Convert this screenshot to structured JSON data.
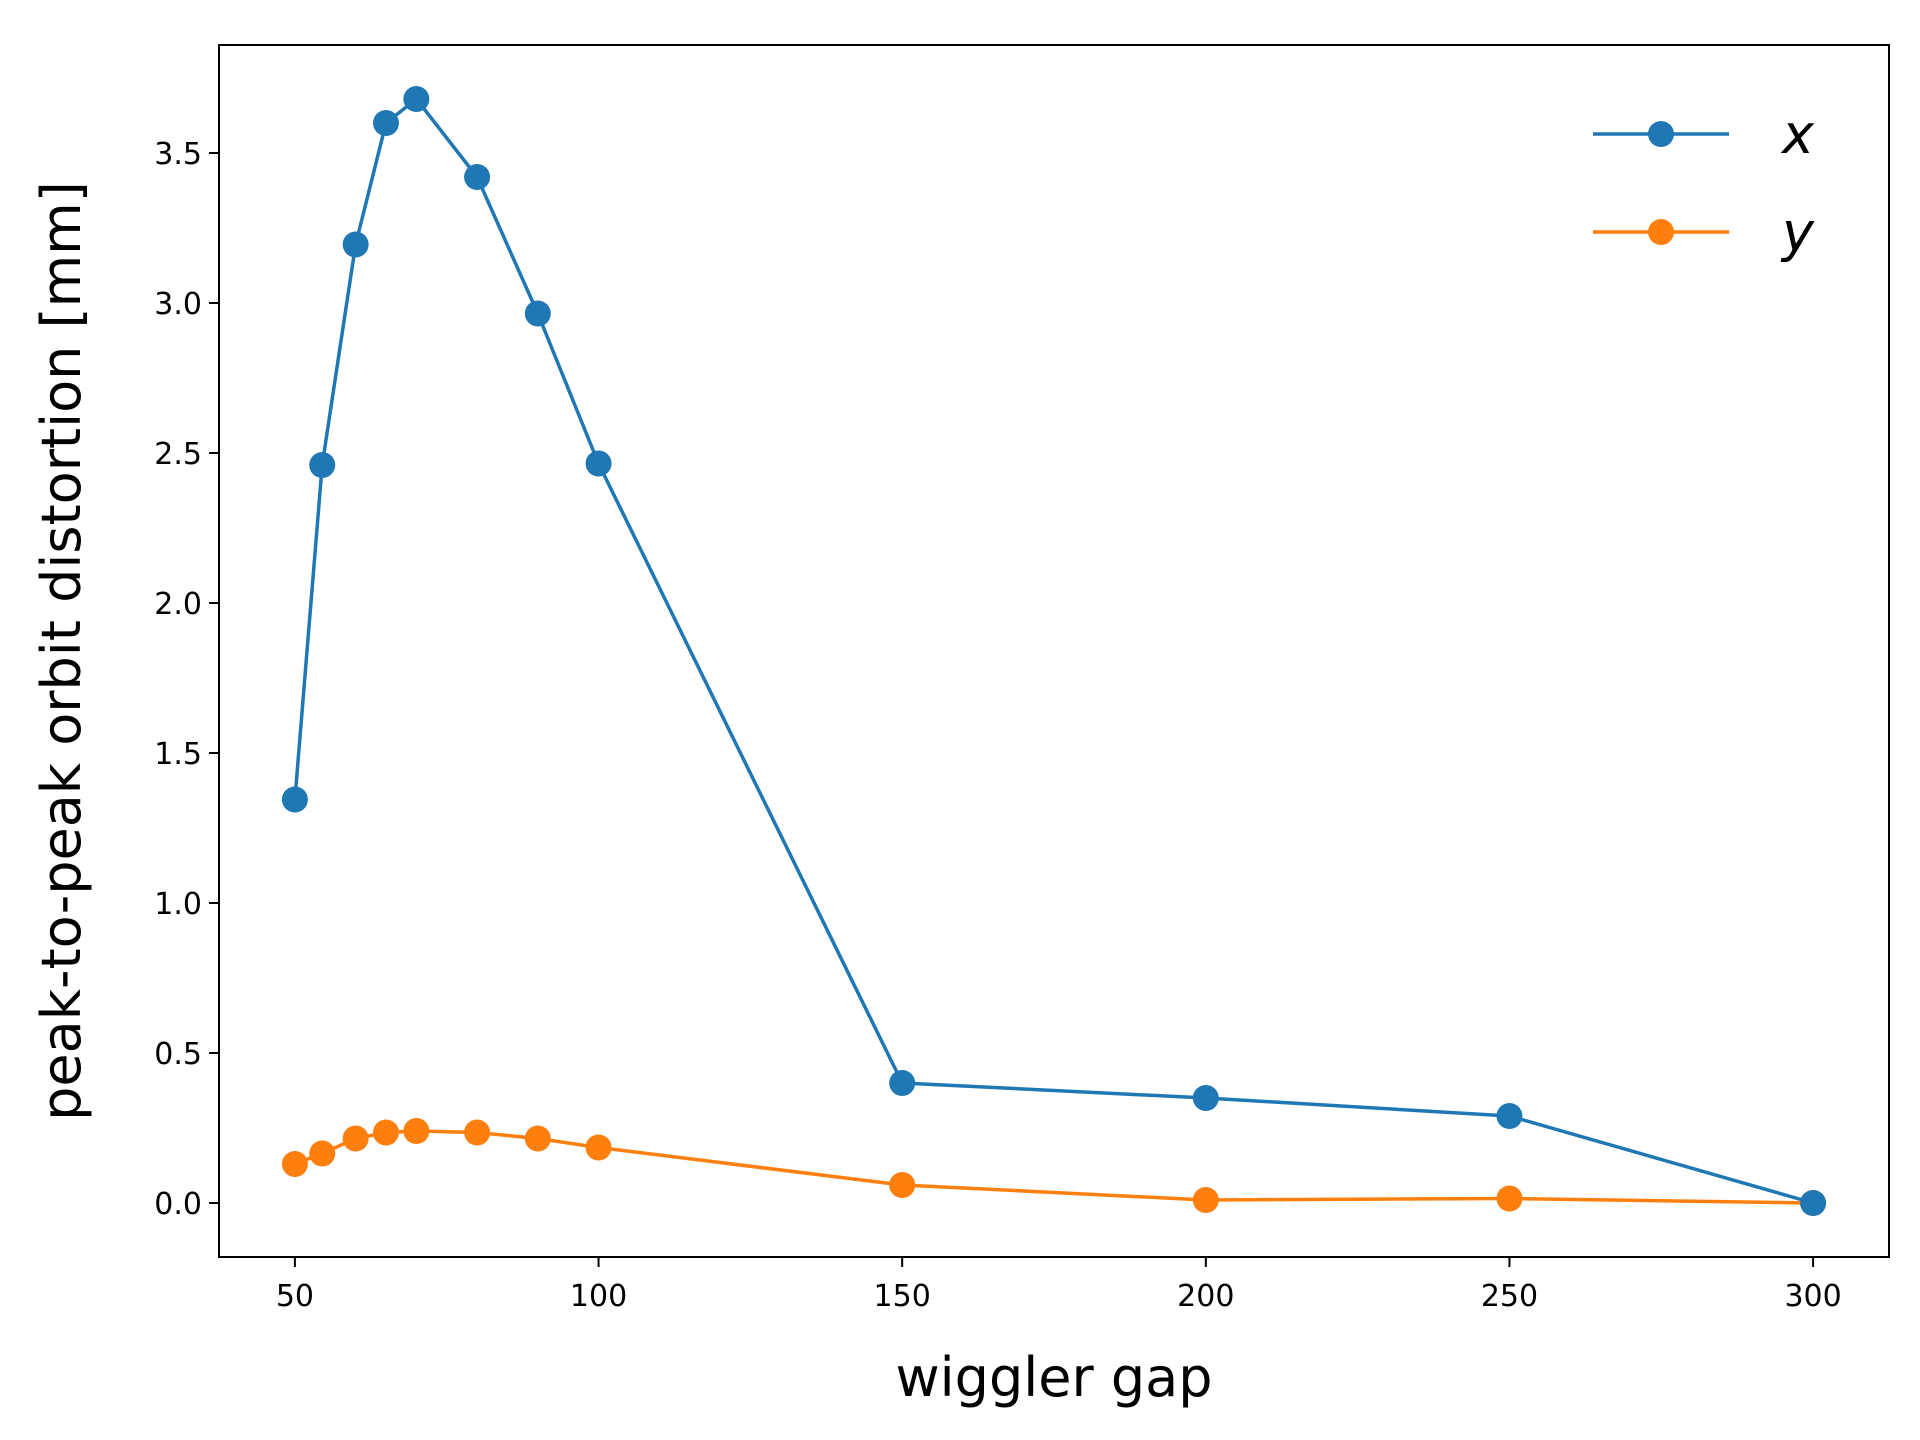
{
  "chart_data": {
    "type": "line",
    "xlabel": "wiggler gap",
    "ylabel": "peak-to-peak orbit distortion [mm]",
    "xlim": [
      37.5,
      312.5
    ],
    "ylim": [
      -0.18,
      3.86
    ],
    "xticks": [
      50,
      100,
      150,
      200,
      250,
      300
    ],
    "xtick_labels": [
      "50",
      "100",
      "150",
      "200",
      "250",
      "300"
    ],
    "yticks": [
      0.0,
      0.5,
      1.0,
      1.5,
      2.0,
      2.5,
      3.0,
      3.5
    ],
    "ytick_labels": [
      "0.0",
      "0.5",
      "1.0",
      "1.5",
      "2.0",
      "2.5",
      "3.0",
      "3.5"
    ],
    "grid": false,
    "legend_position": "top-right",
    "x": [
      50,
      54.5,
      60,
      65,
      70,
      80,
      90,
      100,
      150,
      200,
      250,
      300
    ],
    "series": [
      {
        "name": "x",
        "color": "#1f77b4",
        "values": [
          1.345,
          2.46,
          3.195,
          3.6,
          3.68,
          3.42,
          2.965,
          2.465,
          0.4,
          0.35,
          0.29,
          0.0
        ]
      },
      {
        "name": "y",
        "color": "#ff7f0e",
        "values": [
          0.13,
          0.165,
          0.215,
          0.235,
          0.24,
          0.235,
          0.215,
          0.185,
          0.06,
          0.01,
          0.015,
          0.0
        ]
      }
    ]
  }
}
